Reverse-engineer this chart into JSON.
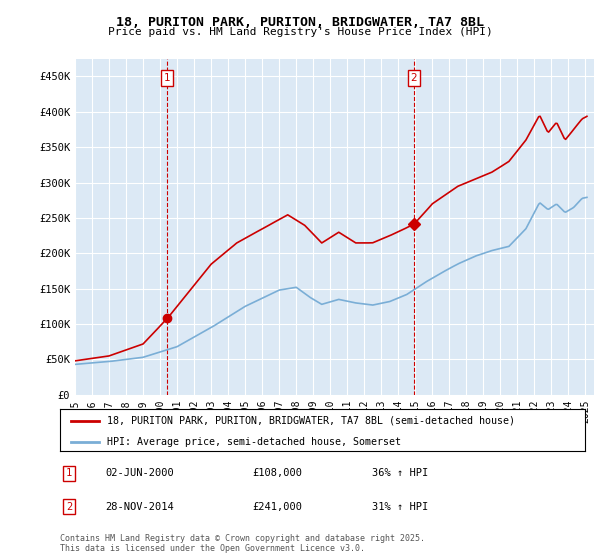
{
  "title": "18, PURITON PARK, PURITON, BRIDGWATER, TA7 8BL",
  "subtitle": "Price paid vs. HM Land Registry's House Price Index (HPI)",
  "legend_line1": "18, PURITON PARK, PURITON, BRIDGWATER, TA7 8BL (semi-detached house)",
  "legend_line2": "HPI: Average price, semi-detached house, Somerset",
  "annotation1_label": "1",
  "annotation1_date": "02-JUN-2000",
  "annotation1_price": "£108,000",
  "annotation1_hpi": "36% ↑ HPI",
  "annotation2_label": "2",
  "annotation2_date": "28-NOV-2014",
  "annotation2_price": "£241,000",
  "annotation2_hpi": "31% ↑ HPI",
  "footnote": "Contains HM Land Registry data © Crown copyright and database right 2025.\nThis data is licensed under the Open Government Licence v3.0.",
  "red_color": "#cc0000",
  "blue_color": "#7aaed6",
  "plot_bg_color": "#dce9f5",
  "background_color": "#ffffff",
  "grid_color": "#ffffff",
  "ylim": [
    0,
    475000
  ],
  "yticks": [
    0,
    50000,
    100000,
    150000,
    200000,
    250000,
    300000,
    350000,
    400000,
    450000
  ],
  "ytick_labels": [
    "£0",
    "£50K",
    "£100K",
    "£150K",
    "£200K",
    "£250K",
    "£300K",
    "£350K",
    "£400K",
    "£450K"
  ],
  "sale1_x": 2000.42,
  "sale1_y": 108000,
  "sale2_x": 2014.91,
  "sale2_y": 241000,
  "vline1_x": 2000.42,
  "vline2_x": 2014.91,
  "xlim_left": 1995.0,
  "xlim_right": 2025.5
}
